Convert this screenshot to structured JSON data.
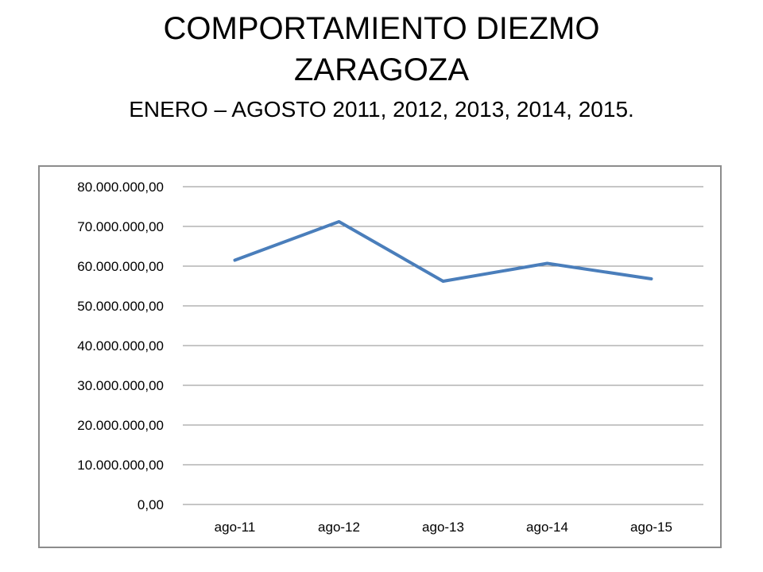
{
  "slide": {
    "title_line1": "COMPORTAMIENTO  DIEZMO",
    "title_line2": "ZARAGOZA",
    "subtitle": "ENERO – AGOSTO 2011, 2012, 2013, 2014, 2015."
  },
  "chart_data": {
    "type": "line",
    "title": "",
    "xlabel": "",
    "ylabel": "",
    "categories": [
      "ago-11",
      "ago-12",
      "ago-13",
      "ago-14",
      "ago-15"
    ],
    "series": [
      {
        "values": [
          61500000,
          71200000,
          56200000,
          60700000,
          56800000
        ],
        "color": "#4a7ebb"
      }
    ],
    "ylim": [
      0,
      80000000
    ],
    "yticks": [
      0,
      10000000,
      20000000,
      30000000,
      40000000,
      50000000,
      60000000,
      70000000,
      80000000
    ],
    "ytick_labels": [
      "0,00",
      "10.000.000,00",
      "20.000.000,00",
      "30.000.000,00",
      "40.000.000,00",
      "50.000.000,00",
      "60.000.000,00",
      "70.000.000,00",
      "80.000.000,00"
    ],
    "grid": true,
    "grid_color": "#8c8c8c",
    "legend": "none"
  }
}
